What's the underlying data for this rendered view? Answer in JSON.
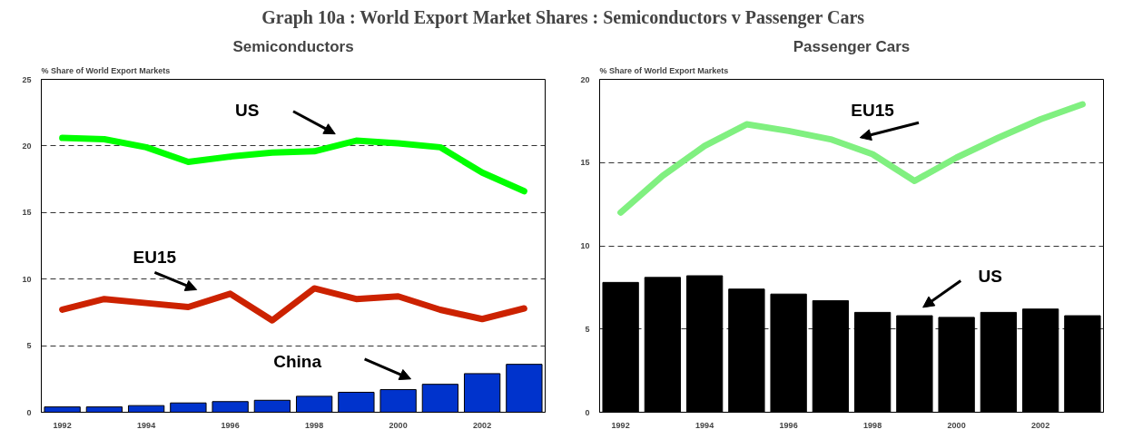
{
  "chart_data": [
    {
      "type": "other",
      "title": "Graph 10a : World Export Market Shares : Semiconductors v Passenger Cars"
    },
    {
      "type": "line",
      "title": "Semiconductors",
      "ylabel": "% Share of World Export Markets",
      "categories": [
        "1992",
        null,
        "1994",
        null,
        "1996",
        null,
        "1998",
        null,
        "2000",
        null,
        "2002",
        null
      ],
      "ylim": [
        0,
        25
      ],
      "yticks": [
        0,
        5,
        10,
        15,
        20,
        25
      ],
      "grid": "y",
      "legend": false,
      "series": [
        {
          "name": "US",
          "color": "#00ff00",
          "values": [
            20.6,
            20.5,
            19.9,
            18.8,
            19.2,
            19.5,
            19.6,
            20.4,
            20.2,
            19.9,
            18.0,
            16.6
          ]
        },
        {
          "name": "EU15",
          "color": "#cc2200",
          "values": [
            7.7,
            8.5,
            8.2,
            7.9,
            8.9,
            6.9,
            9.3,
            8.5,
            8.7,
            7.7,
            7.0,
            7.8
          ]
        },
        {
          "name": "China",
          "type": "bar",
          "color": "#0033cc",
          "values": [
            0.4,
            0.4,
            0.5,
            0.7,
            0.8,
            0.9,
            1.2,
            1.5,
            1.7,
            2.1,
            2.9,
            3.6
          ]
        }
      ]
    },
    {
      "type": "line",
      "title": "Passenger Cars",
      "ylabel": "% Share of World Export Markets",
      "categories": [
        "1992",
        null,
        "1994",
        null,
        "1996",
        null,
        "1998",
        null,
        "2000",
        null,
        "2002",
        null
      ],
      "ylim": [
        0,
        20
      ],
      "yticks": [
        0,
        5,
        10,
        15,
        20
      ],
      "grid": "y",
      "legend": false,
      "series": [
        {
          "name": "US",
          "type": "bar",
          "color": "#000000",
          "values": [
            7.8,
            8.1,
            8.2,
            7.4,
            7.1,
            6.7,
            6.0,
            5.8,
            5.7,
            6.0,
            6.2,
            5.8
          ]
        },
        {
          "name": "EU15",
          "color": "#80f080",
          "values": [
            12.0,
            14.2,
            16.0,
            17.3,
            16.9,
            16.4,
            15.5,
            13.9,
            15.3,
            16.5,
            17.6,
            18.5
          ]
        }
      ]
    }
  ]
}
